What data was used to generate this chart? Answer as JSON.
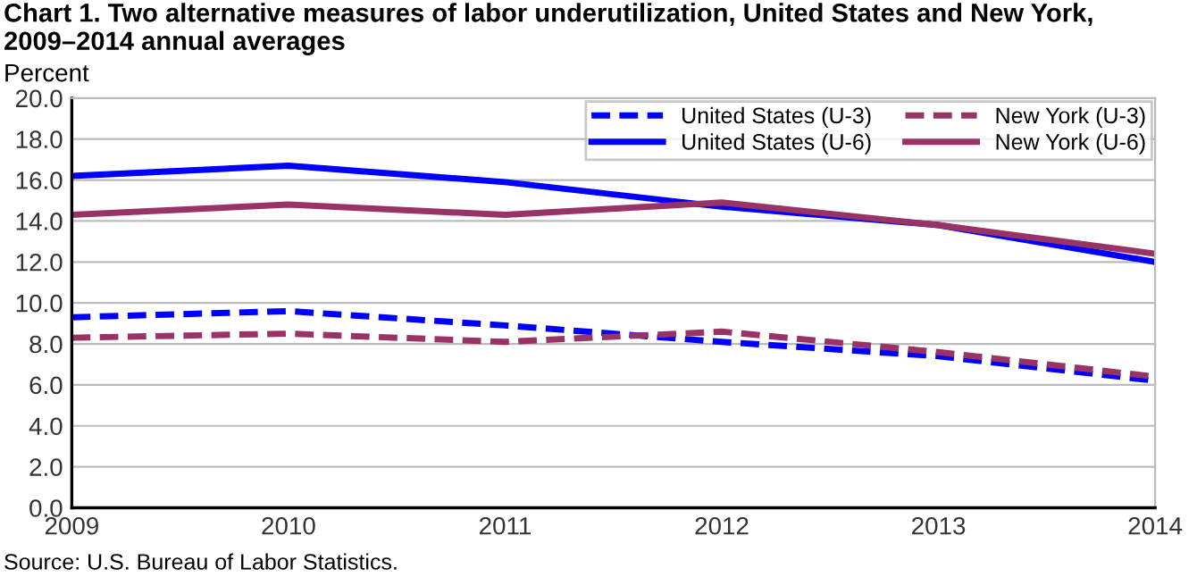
{
  "chart_data": {
    "type": "line",
    "title": "Chart 1. Two alternative measures of labor underutilization, United States and New York, 2009–2014 annual averages",
    "ylabel": "Percent",
    "x": [
      2009,
      2010,
      2011,
      2012,
      2013,
      2014
    ],
    "series": [
      {
        "name": "United States (U-3)",
        "color": "#0000ff",
        "line_style": "dashed",
        "values": [
          9.3,
          9.6,
          8.9,
          8.1,
          7.4,
          6.2
        ]
      },
      {
        "name": "United States (U-6)",
        "color": "#0000ff",
        "line_style": "solid",
        "values": [
          16.2,
          16.7,
          15.9,
          14.7,
          13.8,
          12.0
        ]
      },
      {
        "name": "New York (U-3)",
        "color": "#993366",
        "line_style": "dashed",
        "values": [
          8.3,
          8.5,
          8.1,
          8.6,
          7.6,
          6.4
        ]
      },
      {
        "name": "New York (U-6)",
        "color": "#993366",
        "line_style": "solid",
        "values": [
          14.3,
          14.8,
          14.3,
          14.9,
          13.8,
          12.4
        ]
      }
    ],
    "xlim": [
      2009,
      2014
    ],
    "xticks": [
      2009,
      2010,
      2011,
      2012,
      2013,
      2014
    ],
    "ylim": [
      0,
      20
    ],
    "yticks": [
      {
        "value": 0,
        "label": "0.0"
      },
      {
        "value": 2,
        "label": "2.0"
      },
      {
        "value": 4,
        "label": "4.0"
      },
      {
        "value": 6,
        "label": "6.0"
      },
      {
        "value": 8,
        "label": "8.0"
      },
      {
        "value": 10,
        "label": "10.0"
      },
      {
        "value": 12,
        "label": "12.0"
      },
      {
        "value": 14,
        "label": "14.0"
      },
      {
        "value": 16,
        "label": "16.0"
      },
      {
        "value": 18,
        "label": "18.0"
      },
      {
        "value": 20,
        "label": "20.0"
      }
    ],
    "grid": "y",
    "legend": "top right",
    "marker": "none",
    "annotations": [
      "Source: U.S. Bureau of Labor Statistics."
    ]
  }
}
